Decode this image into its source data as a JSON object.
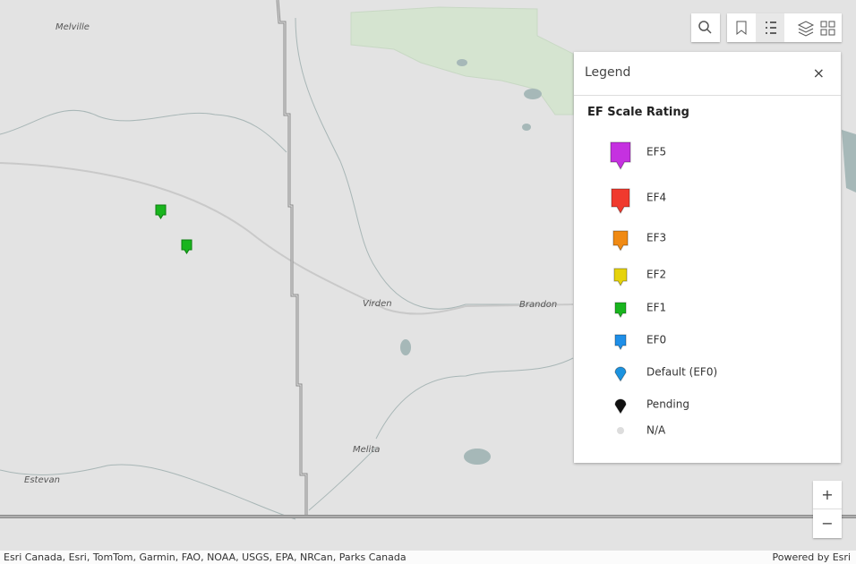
{
  "map": {
    "places": [
      "Melville",
      "Virden",
      "Brandon",
      "Melita",
      "Estevan"
    ],
    "legend": {
      "title": "Legend",
      "heading": "EF Scale Rating",
      "items": [
        {
          "label": "EF5",
          "color": "#c531e0",
          "shape": "square"
        },
        {
          "label": "EF4",
          "color": "#f03a2e",
          "shape": "square"
        },
        {
          "label": "EF3",
          "color": "#f08a14",
          "shape": "square"
        },
        {
          "label": "EF2",
          "color": "#e6d30c",
          "shape": "square"
        },
        {
          "label": "EF1",
          "color": "#19b51e",
          "shape": "square"
        },
        {
          "label": "EF0",
          "color": "#1f8fe8",
          "shape": "square"
        },
        {
          "label": "Default (EF0)",
          "color": "#1b93e0",
          "shape": "round"
        },
        {
          "label": "Pending",
          "color": "#111111",
          "shape": "round"
        },
        {
          "label": "N/A",
          "color": "#dddddd",
          "shape": "dot"
        }
      ]
    },
    "zoom": [
      "+",
      "−"
    ],
    "attribution": "Esri Canada, Esri, TomTom, Garmin, FAO, NOAA, USGS, EPA, NRCan, Parks Canada",
    "powered_by": "Powered by Esri"
  }
}
